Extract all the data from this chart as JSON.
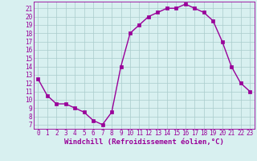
{
  "x": [
    0,
    1,
    2,
    3,
    4,
    5,
    6,
    7,
    8,
    9,
    10,
    11,
    12,
    13,
    14,
    15,
    16,
    17,
    18,
    19,
    20,
    21,
    22,
    23
  ],
  "y": [
    12.5,
    10.5,
    9.5,
    9.5,
    9.0,
    8.5,
    7.5,
    7.0,
    8.5,
    14.0,
    18.0,
    19.0,
    20.0,
    20.5,
    21.0,
    21.0,
    21.5,
    21.0,
    20.5,
    19.5,
    17.0,
    14.0,
    12.0,
    11.0
  ],
  "color": "#990099",
  "bg_color": "#d8f0f0",
  "grid_color": "#aacccc",
  "xlabel": "Windchill (Refroidissement éolien,°C)",
  "ylim_min": 6.5,
  "ylim_max": 21.8,
  "xlim_min": -0.5,
  "xlim_max": 23.5,
  "yticks": [
    7,
    8,
    9,
    10,
    11,
    12,
    13,
    14,
    15,
    16,
    17,
    18,
    19,
    20,
    21
  ],
  "xticks": [
    0,
    1,
    2,
    3,
    4,
    5,
    6,
    7,
    8,
    9,
    10,
    11,
    12,
    13,
    14,
    15,
    16,
    17,
    18,
    19,
    20,
    21,
    22,
    23
  ],
  "marker": "s",
  "marker_size": 2.2,
  "line_width": 1.0,
  "xlabel_fontsize": 6.5,
  "tick_fontsize": 5.5
}
